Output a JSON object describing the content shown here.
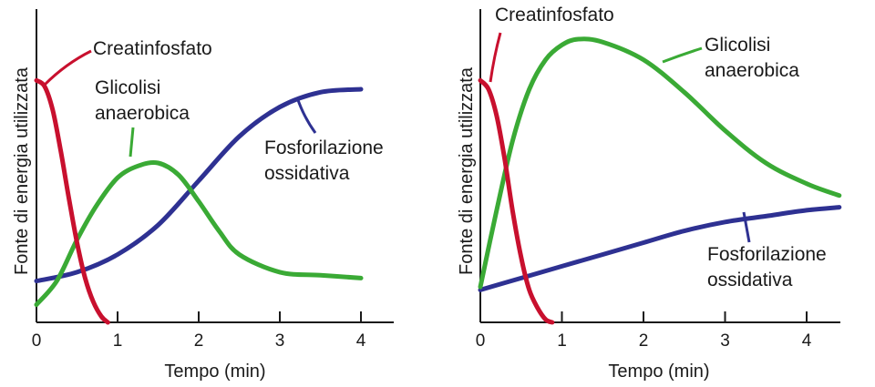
{
  "chart_data": [
    {
      "type": "line",
      "xlabel": "Tempo (min)",
      "ylabel": "Fonte di energia utilizzata",
      "xlim": [
        0,
        4.4
      ],
      "ylim": [
        0,
        1
      ],
      "xticks": [
        "0",
        "1",
        "2",
        "3",
        "4"
      ],
      "grid": false,
      "series": [
        {
          "name": "Creatinfosfato",
          "color": "#c8102e",
          "x": [
            0,
            0.1,
            0.2,
            0.3,
            0.4,
            0.5,
            0.6,
            0.7,
            0.8,
            0.88
          ],
          "y": [
            0.82,
            0.8,
            0.72,
            0.58,
            0.42,
            0.27,
            0.15,
            0.07,
            0.02,
            0.0
          ]
        },
        {
          "name": "Glicolisi anaerobica",
          "color": "#3aaa35",
          "x": [
            0,
            0.25,
            0.5,
            0.75,
            1.0,
            1.25,
            1.5,
            1.75,
            2.0,
            2.25,
            2.5,
            3.0,
            3.5,
            4.0
          ],
          "y": [
            0.06,
            0.14,
            0.28,
            0.4,
            0.49,
            0.53,
            0.54,
            0.5,
            0.41,
            0.31,
            0.23,
            0.17,
            0.16,
            0.15
          ]
        },
        {
          "name": "Fosforilazione ossidativa",
          "color": "#2e3192",
          "x": [
            0,
            0.5,
            1.0,
            1.5,
            2.0,
            2.5,
            3.0,
            3.5,
            4.0
          ],
          "y": [
            0.14,
            0.17,
            0.23,
            0.33,
            0.48,
            0.63,
            0.73,
            0.78,
            0.79
          ]
        }
      ],
      "annotations": [
        {
          "series": 0,
          "lines": [
            "Creatinfosfato"
          ]
        },
        {
          "series": 1,
          "lines": [
            "Glicolisi",
            "anaerobica"
          ]
        },
        {
          "series": 2,
          "lines": [
            "Fosforilazione",
            "ossidativa"
          ]
        }
      ]
    },
    {
      "type": "line",
      "xlabel": "Tempo (min)",
      "ylabel": "Fonte di energia utilizzata",
      "xlim": [
        0,
        4.4
      ],
      "ylim": [
        0,
        1
      ],
      "xticks": [
        "0",
        "1",
        "2",
        "3",
        "4"
      ],
      "grid": false,
      "series": [
        {
          "name": "Creatinfosfato",
          "color": "#c8102e",
          "x": [
            0,
            0.1,
            0.2,
            0.3,
            0.4,
            0.5,
            0.6,
            0.7,
            0.8,
            0.88
          ],
          "y": [
            0.82,
            0.79,
            0.7,
            0.55,
            0.37,
            0.22,
            0.11,
            0.05,
            0.01,
            0.0
          ]
        },
        {
          "name": "Glicolisi anaerobica",
          "color": "#3aaa35",
          "x": [
            0,
            0.2,
            0.4,
            0.6,
            0.8,
            1.0,
            1.2,
            1.5,
            2.0,
            2.5,
            3.0,
            3.5,
            4.0,
            4.4
          ],
          "y": [
            0.12,
            0.38,
            0.62,
            0.79,
            0.89,
            0.94,
            0.96,
            0.95,
            0.89,
            0.78,
            0.65,
            0.54,
            0.47,
            0.43
          ]
        },
        {
          "name": "Fosforilazione ossidativa",
          "color": "#2e3192",
          "x": [
            0,
            0.5,
            1.0,
            1.5,
            2.0,
            2.5,
            3.0,
            3.5,
            4.0,
            4.4
          ],
          "y": [
            0.11,
            0.15,
            0.19,
            0.23,
            0.27,
            0.31,
            0.34,
            0.36,
            0.38,
            0.39
          ]
        }
      ],
      "annotations": [
        {
          "series": 0,
          "lines": [
            "Creatinfosfato"
          ]
        },
        {
          "series": 1,
          "lines": [
            "Glicolisi",
            "anaerobica"
          ]
        },
        {
          "series": 2,
          "lines": [
            "Fosforilazione",
            "ossidativa"
          ]
        }
      ]
    }
  ]
}
